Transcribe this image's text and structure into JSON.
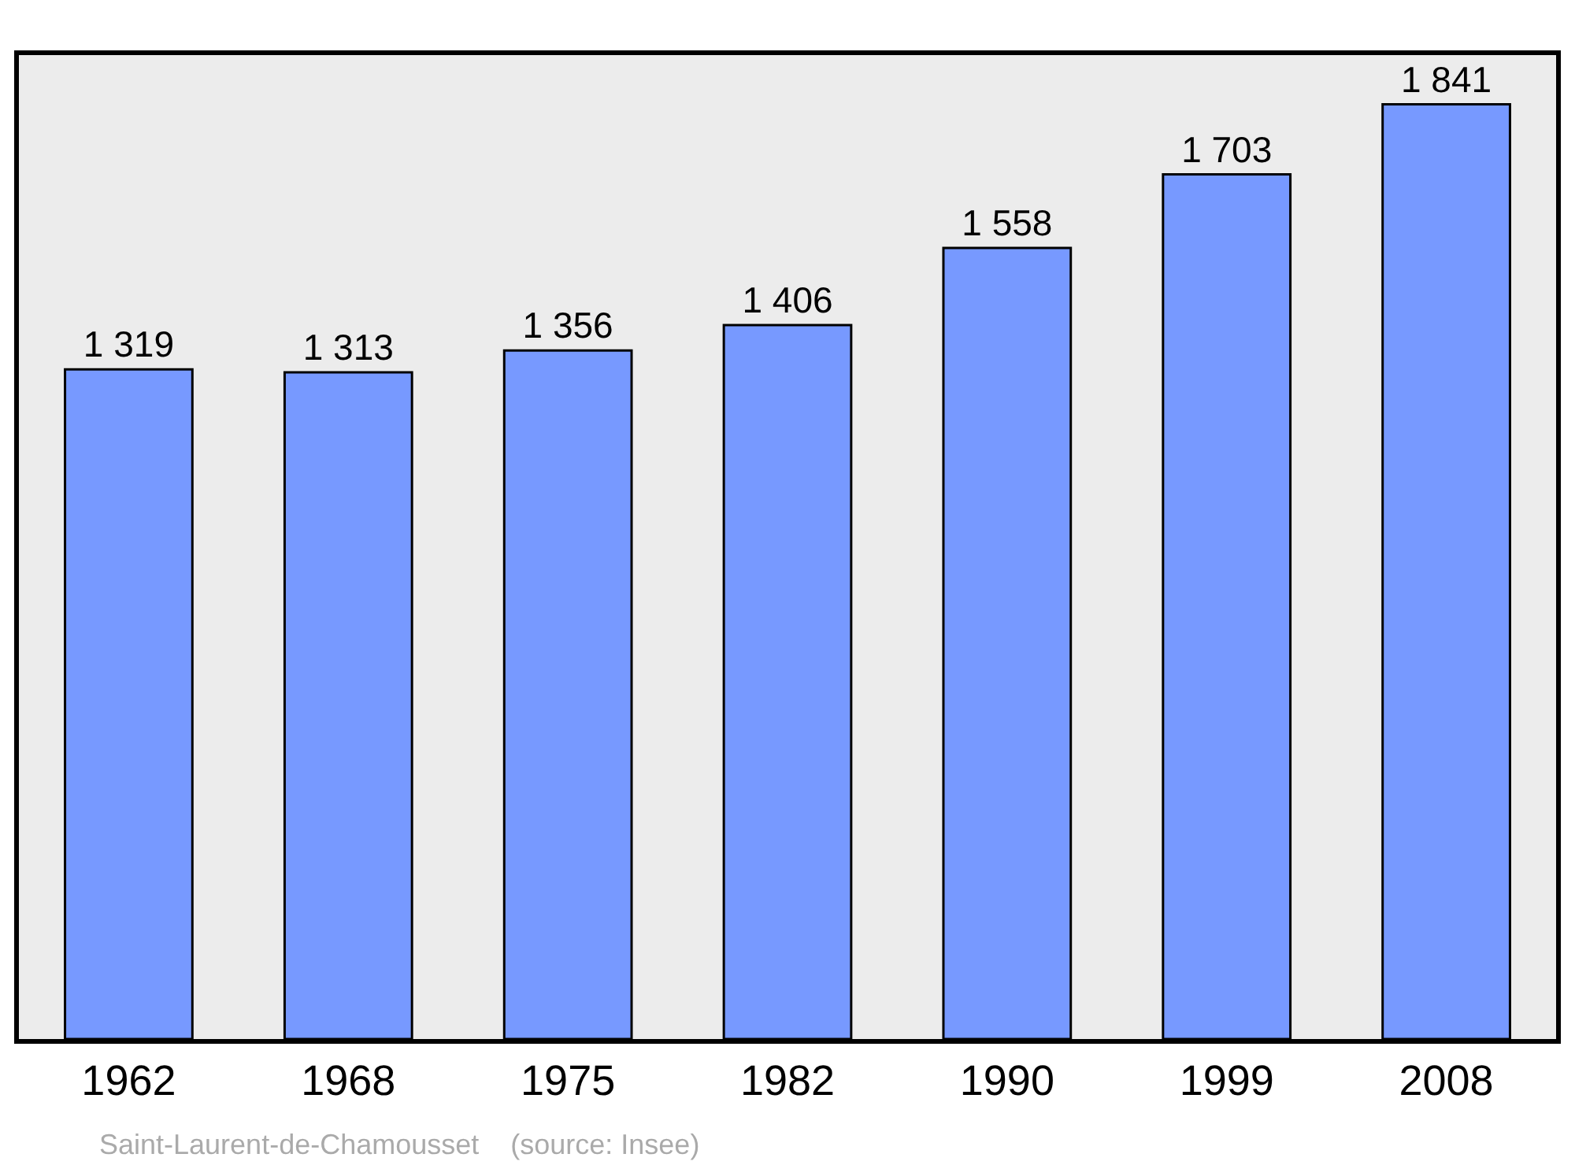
{
  "chart_data": {
    "type": "bar",
    "categories": [
      "1962",
      "1968",
      "1975",
      "1982",
      "1990",
      "1999",
      "2008"
    ],
    "values": [
      1319,
      1313,
      1356,
      1406,
      1558,
      1703,
      1841
    ],
    "value_labels": [
      "1 319",
      "1 313",
      "1 356",
      "1 406",
      "1 558",
      "1 703",
      "1 841"
    ],
    "color": "#7799ff",
    "tick_labels": "x",
    "annotations": [
      "Saint-Laurent-de-Chamousset    (source: Insee)"
    ]
  }
}
